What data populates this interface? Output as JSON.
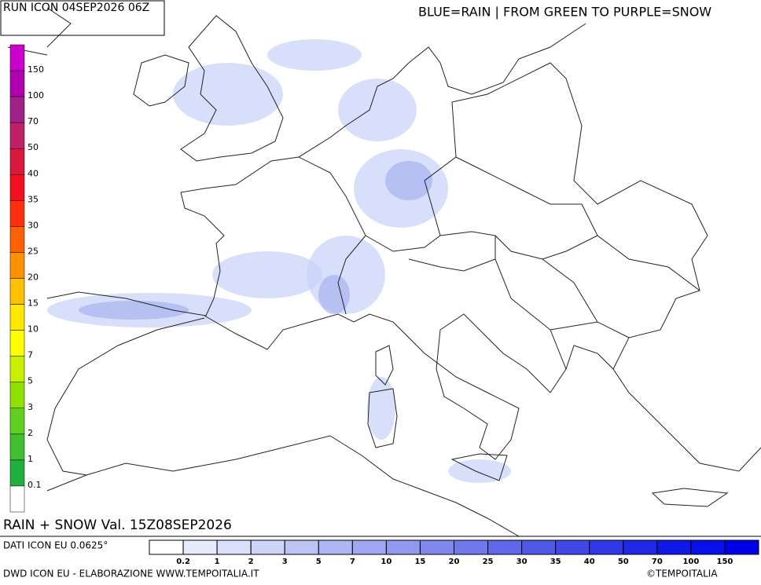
{
  "header": {
    "run": "RUN ICON 04SEP2026 06Z",
    "legend_note": "BLUE=RAIN | FROM GREEN TO PURPLE=SNOW"
  },
  "snow_scale": {
    "labels": [
      "150",
      "100",
      "70",
      "50",
      "40",
      "35",
      "30",
      "25",
      "20",
      "15",
      "10",
      "7",
      "5",
      "3",
      "2",
      "1",
      "0.1"
    ],
    "colors": [
      "#cc00cc",
      "#b000b0",
      "#a0208a",
      "#c0206a",
      "#d8183c",
      "#f01020",
      "#ff3010",
      "#ff6000",
      "#ff9000",
      "#ffc000",
      "#ffe800",
      "#ffff00",
      "#c8f000",
      "#90e000",
      "#60d020",
      "#40c030",
      "#20b040",
      "#ffffff"
    ]
  },
  "rain_scale": {
    "labels": [
      "0.2",
      "1",
      "2",
      "3",
      "5",
      "7",
      "10",
      "15",
      "20",
      "25",
      "30",
      "35",
      "40",
      "50",
      "70",
      "100",
      "150"
    ],
    "colors": [
      "#ffffff",
      "#e6ecfc",
      "#d8e0fa",
      "#ccd4f8",
      "#bcc4f6",
      "#aeb6f4",
      "#a0a6f2",
      "#9098f0",
      "#8088ee",
      "#7078ec",
      "#6068ea",
      "#5058e8",
      "#4048e8",
      "#3038e8",
      "#2028e8",
      "#1018e8",
      "#0810ea",
      "#0000e8"
    ]
  },
  "map_title": "RAIN + SNOW Val. 15Z08SEP2026",
  "footer": {
    "data_source": "DATI ICON EU 0.0625°",
    "credit": "DWD ICON EU - ELABORAZIONE WWW.TEMPOITALIA.IT",
    "copyright": "©TEMPOITALIA"
  }
}
